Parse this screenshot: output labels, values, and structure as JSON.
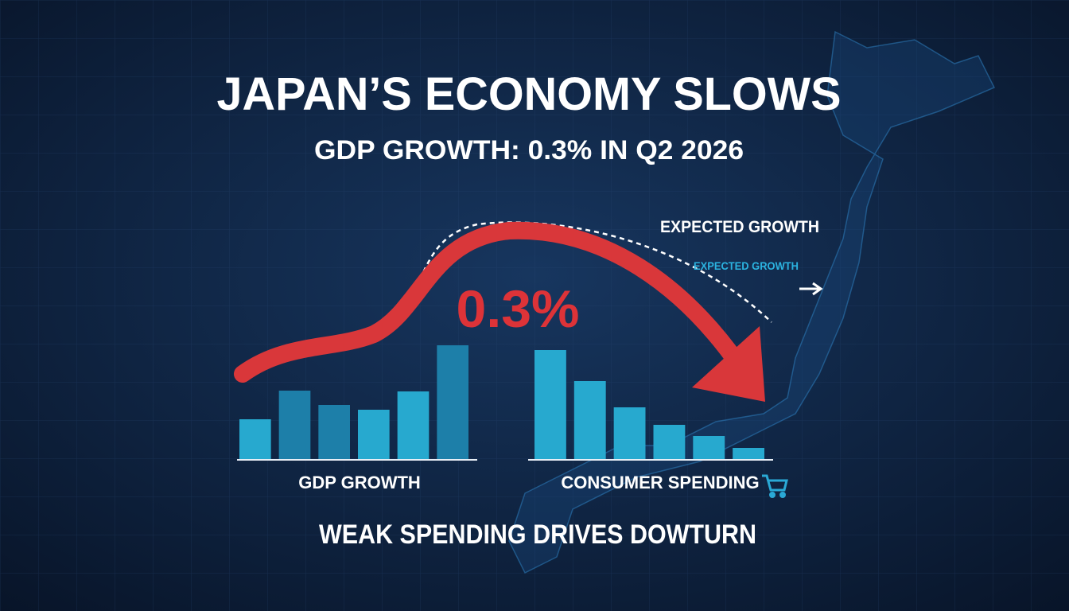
{
  "title": "JAPAN’S ECONOMY SLOWS",
  "subtitle": "GDP GROWTH: 0.3% IN Q2 2026",
  "highlight": "0.3%",
  "annotations": [
    "EXPECTED GROWTH",
    "EXPECTED GROWTH"
  ],
  "footer": "WEAK SPENDING DRIVES DOWTURN",
  "chart_data": [
    {
      "type": "bar",
      "label": "GDP GROWTH",
      "values": [
        50,
        86,
        68,
        62,
        85,
        143
      ],
      "colors": [
        "#27a9cf",
        "#1d7fa9",
        "#1d7fa9",
        "#27a9cf",
        "#27a9cf",
        "#1d7fa9"
      ],
      "ylim": [
        0,
        150
      ]
    },
    {
      "type": "bar",
      "label": "CONSUMER SPENDING",
      "values": [
        137,
        98,
        65,
        43,
        29,
        14
      ],
      "colors": [
        "#27a9cf",
        "#27a9cf",
        "#27a9cf",
        "#27a9cf",
        "#27a9cf",
        "#27a9cf"
      ],
      "ylim": [
        0,
        150
      ]
    }
  ]
}
